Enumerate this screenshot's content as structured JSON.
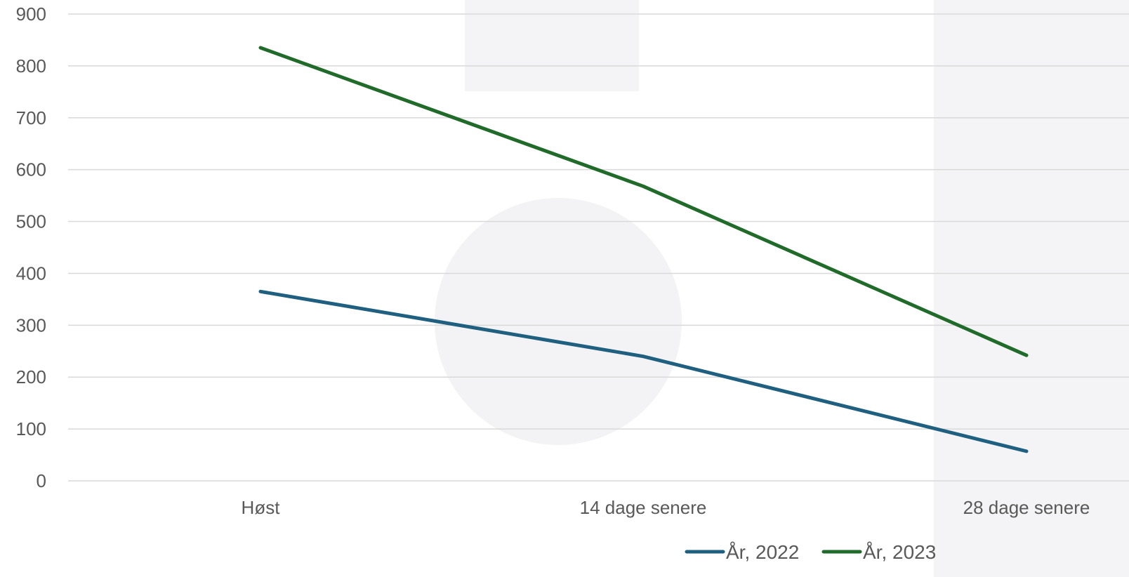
{
  "chart_data": {
    "type": "line",
    "title": "",
    "xlabel": "",
    "ylabel": "",
    "categories": [
      "Høst",
      "14 dage senere",
      "28 dage senere"
    ],
    "ylim": [
      0,
      900
    ],
    "yticks": [
      0,
      100,
      200,
      300,
      400,
      500,
      600,
      700,
      800,
      900
    ],
    "grid": true,
    "legend_position": "bottom-right",
    "series": [
      {
        "name": "År, 2022",
        "values": [
          365,
          240,
          57
        ],
        "color": "#1f5f7f"
      },
      {
        "name": "År, 2023",
        "values": [
          835,
          568,
          242
        ],
        "color": "#216b2a"
      }
    ]
  }
}
